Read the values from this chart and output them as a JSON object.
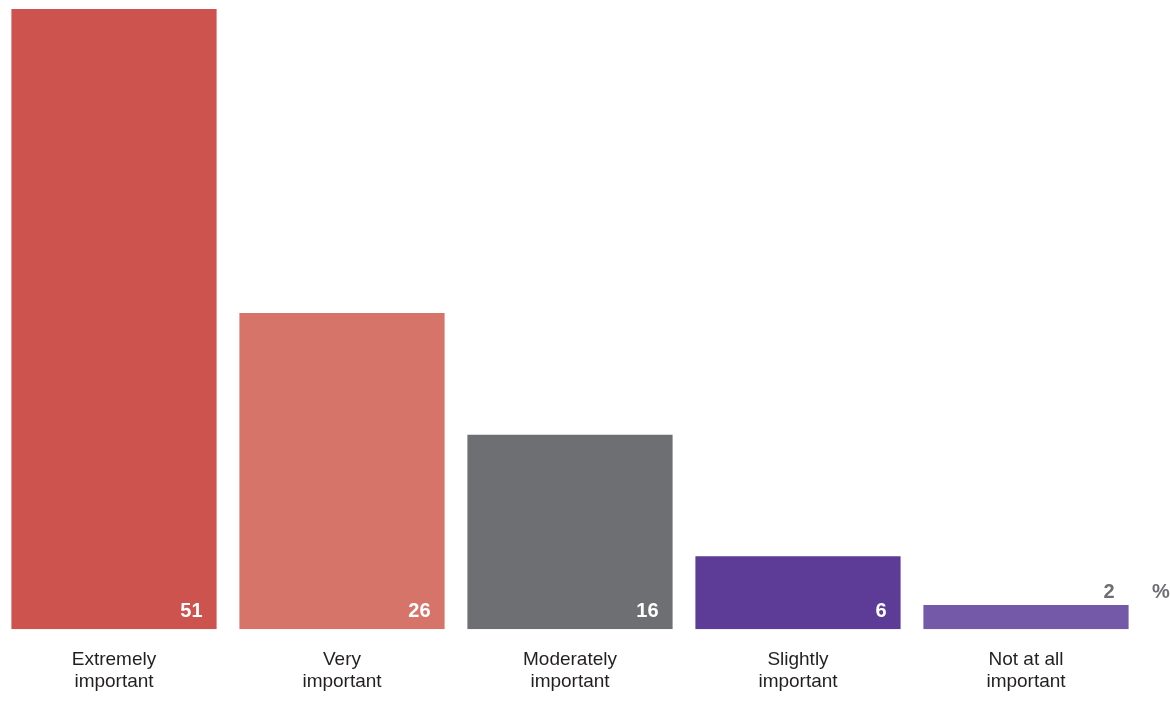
{
  "chart_data": {
    "type": "bar",
    "categories": [
      "Extremely important",
      "Very important",
      "Moderately important",
      "Slightly important",
      "Not at all important"
    ],
    "values": [
      51,
      26,
      16,
      6,
      2
    ],
    "colors": [
      "#cc534e",
      "#d6746a",
      "#6e6f73",
      "#5c3c97",
      "#7459a8"
    ],
    "data_labels": true,
    "annotations": [
      "%"
    ]
  }
}
